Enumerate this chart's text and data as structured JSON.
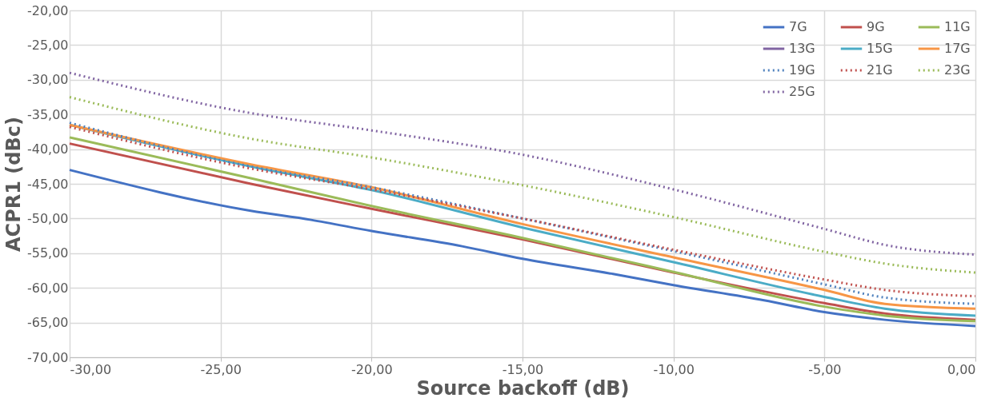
{
  "chart_data": {
    "type": "line",
    "xlabel": "Source backoff (dB)",
    "ylabel": "ACPR1 (dBc)",
    "x": [
      -30,
      -24,
      -20,
      -15,
      -10,
      -5,
      -3,
      0
    ],
    "xlim": [
      -30,
      0
    ],
    "xticks": [
      {
        "value": -30,
        "label": "-30,00"
      },
      {
        "value": -25,
        "label": "-25,00"
      },
      {
        "value": -20,
        "label": "-20,00"
      },
      {
        "value": -15,
        "label": "-15,00"
      },
      {
        "value": -10,
        "label": "-10,00"
      },
      {
        "value": -5,
        "label": "-5,00"
      },
      {
        "value": 0,
        "label": "0,00"
      }
    ],
    "ylim": [
      -70,
      -20
    ],
    "yticks": [
      {
        "value": -70,
        "label": "-70,00"
      },
      {
        "value": -65,
        "label": "-65,00"
      },
      {
        "value": -60,
        "label": "-60,00"
      },
      {
        "value": -55,
        "label": "-55,00"
      },
      {
        "value": -50,
        "label": "-50,00"
      },
      {
        "value": -45,
        "label": "-45,00"
      },
      {
        "value": -40,
        "label": "-40,00"
      },
      {
        "value": -35,
        "label": "-35,00"
      },
      {
        "value": -30,
        "label": "-30,00"
      },
      {
        "value": -25,
        "label": "-25,00"
      },
      {
        "value": -20,
        "label": "-20,00"
      }
    ],
    "grid": true,
    "legend": "top right",
    "series": [
      {
        "name": "7G",
        "color": "#4472c4",
        "line_style": "solid",
        "x": [
          -30,
          -24,
          -22,
          -20,
          -17,
          -15,
          -12,
          -10,
          -7,
          -5,
          -3,
          0
        ],
        "values": [
          -43,
          -48.9,
          -50.2,
          -51.8,
          -54,
          -55.8,
          -58,
          -59.6,
          -61.8,
          -63.5,
          -64.6,
          -65.5
        ]
      },
      {
        "name": "9G",
        "color": "#c0504d",
        "line_style": "solid",
        "values": [
          -39.2,
          -45,
          -48.6,
          -53,
          -57.8,
          -62.2,
          -63.7,
          -64.6
        ]
      },
      {
        "name": "11G",
        "color": "#9bbb59",
        "line_style": "solid",
        "values": [
          -38.3,
          -44.2,
          -48.2,
          -52.8,
          -57.7,
          -62.7,
          -64,
          -64.8
        ]
      },
      {
        "name": "13G",
        "color": "#8064a2",
        "line_style": "solid",
        "values": [
          null,
          null,
          null,
          null,
          null,
          null,
          null,
          null
        ]
      },
      {
        "name": "15G",
        "color": "#4bacc6",
        "line_style": "solid",
        "values": [
          -36.5,
          -42.5,
          -45.9,
          -51.3,
          -56.3,
          -61.3,
          -63,
          -64
        ]
      },
      {
        "name": "17G",
        "color": "#f79646",
        "line_style": "solid",
        "values": [
          -36.5,
          -42.2,
          -45.5,
          -50.8,
          -55.6,
          -60.3,
          -62.3,
          -63
        ]
      },
      {
        "name": "19G",
        "color": "#4f81bd",
        "line_style": "dotted",
        "values": [
          -36.2,
          -42.5,
          -45.5,
          -50,
          -54.7,
          -59.5,
          -61.4,
          -62.3
        ]
      },
      {
        "name": "21G",
        "color": "#c0504d",
        "line_style": "dotted",
        "values": [
          -36.8,
          -42.8,
          -45.8,
          -50,
          -54.5,
          -58.8,
          -60.3,
          -61.2
        ]
      },
      {
        "name": "23G",
        "color": "#9bbb59",
        "line_style": "dotted",
        "values": [
          -32.5,
          -38.5,
          -41.2,
          -45.2,
          -49.8,
          -54.8,
          -56.5,
          -57.8
        ]
      },
      {
        "name": "25G",
        "color": "#8064a2",
        "line_style": "dotted",
        "values": [
          -29,
          -34.8,
          -37.3,
          -40.8,
          -45.8,
          -51.5,
          -53.8,
          -55.2
        ]
      }
    ]
  }
}
